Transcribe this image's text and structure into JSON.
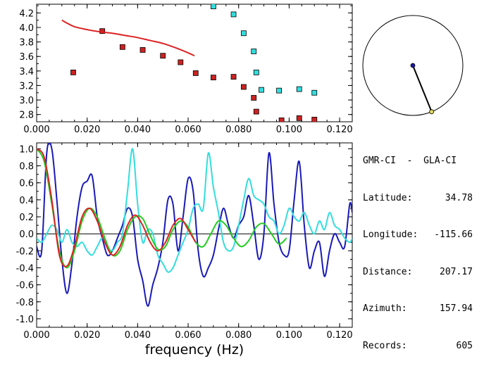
{
  "station_info": {
    "pair": "GMR-CI  -  GLA-CI",
    "rows": [
      {
        "label": "Latitude:",
        "value": "34.78"
      },
      {
        "label": "Longitude:",
        "value": "-115.66"
      },
      {
        "label": "Distance:",
        "value": "207.17"
      },
      {
        "label": "Azimuth:",
        "value": "157.94"
      },
      {
        "label": "Records:",
        "value": "605"
      }
    ]
  },
  "azimuth_plot": {
    "azimuth_deg": 157.94,
    "colors": {
      "line": "#000000",
      "center": "#1a1aa6",
      "end": "#e8e060"
    }
  },
  "chart_data": [
    {
      "type": "scatter",
      "title": "",
      "xlabel": "",
      "ylabel": "",
      "xlim": [
        0.0,
        0.125
      ],
      "ylim": [
        2.7,
        4.32
      ],
      "x_ticks": [
        "0.000",
        "0.020",
        "0.040",
        "0.060",
        "0.080",
        "0.100",
        "0.120"
      ],
      "y_ticks": [
        "2.8",
        "3.0",
        "3.2",
        "3.4",
        "3.6",
        "3.8",
        "4.0",
        "4.2"
      ],
      "series": [
        {
          "name": "red-squares",
          "color": "#cc2222",
          "marker": "square",
          "x": [
            0.0145,
            0.026,
            0.034,
            0.042,
            0.05,
            0.057,
            0.063,
            0.07,
            0.078,
            0.082,
            0.086,
            0.087,
            0.097,
            0.104,
            0.11
          ],
          "y": [
            3.38,
            3.95,
            3.73,
            3.69,
            3.61,
            3.52,
            3.37,
            3.31,
            3.32,
            3.18,
            3.03,
            2.84,
            2.72,
            2.75,
            2.73
          ]
        },
        {
          "name": "cyan-squares",
          "color": "#33dddd",
          "marker": "square",
          "x": [
            0.07,
            0.078,
            0.082,
            0.086,
            0.087,
            0.089,
            0.096,
            0.104,
            0.11
          ],
          "y": [
            4.29,
            4.18,
            3.92,
            3.67,
            3.38,
            3.14,
            3.13,
            3.15,
            3.1
          ]
        },
        {
          "name": "red-curve",
          "color": "#dd2222",
          "marker": "line",
          "x": [
            0.01,
            0.012,
            0.015,
            0.02,
            0.025,
            0.03,
            0.035,
            0.04,
            0.045,
            0.05,
            0.055,
            0.06,
            0.0625
          ],
          "y": [
            4.1,
            4.06,
            4.01,
            3.97,
            3.94,
            3.92,
            3.89,
            3.86,
            3.82,
            3.78,
            3.72,
            3.65,
            3.61
          ]
        }
      ]
    },
    {
      "type": "line",
      "title": "",
      "xlabel": "frequency (Hz)",
      "ylabel": "",
      "xlim": [
        0.0,
        0.125
      ],
      "ylim": [
        -1.1,
        1.07
      ],
      "x_ticks": [
        "0.000",
        "0.020",
        "0.040",
        "0.060",
        "0.080",
        "0.100",
        "0.120"
      ],
      "y_ticks": [
        "1.0",
        "0.8",
        "0.6",
        "0.4",
        "0.2",
        "0.0",
        "-0.2",
        "-0.4",
        "-0.6",
        "-0.8",
        "-1.0"
      ],
      "zero_line": true,
      "series": [
        {
          "name": "blue-trace",
          "color": "#1a1ab8",
          "x": [
            0.0,
            0.002,
            0.004,
            0.006,
            0.008,
            0.01,
            0.012,
            0.014,
            0.016,
            0.018,
            0.02,
            0.022,
            0.024,
            0.026,
            0.028,
            0.03,
            0.032,
            0.034,
            0.036,
            0.038,
            0.04,
            0.042,
            0.044,
            0.046,
            0.048,
            0.05,
            0.052,
            0.054,
            0.056,
            0.058,
            0.06,
            0.062,
            0.064,
            0.066,
            0.068,
            0.07,
            0.072,
            0.074,
            0.076,
            0.078,
            0.08,
            0.082,
            0.084,
            0.086,
            0.088,
            0.09,
            0.092,
            0.094,
            0.096,
            0.098,
            0.1,
            0.102,
            0.104,
            0.106,
            0.108,
            0.11,
            0.112,
            0.114,
            0.116,
            0.118,
            0.12,
            0.122,
            0.124,
            0.125
          ],
          "y": [
            -0.15,
            -0.2,
            0.95,
            1.0,
            0.4,
            -0.3,
            -0.7,
            -0.35,
            0.2,
            0.55,
            0.62,
            0.68,
            0.2,
            -0.05,
            -0.25,
            -0.2,
            -0.05,
            0.1,
            0.3,
            0.2,
            -0.3,
            -0.55,
            -0.85,
            -0.6,
            -0.4,
            -0.1,
            0.4,
            0.35,
            -0.2,
            0.2,
            0.65,
            0.5,
            -0.2,
            -0.5,
            -0.4,
            -0.25,
            0.05,
            0.3,
            0.1,
            -0.05,
            0.1,
            0.2,
            0.45,
            0.1,
            -0.3,
            0.0,
            0.95,
            0.35,
            -0.1,
            -0.25,
            -0.2,
            0.4,
            0.85,
            0.1,
            -0.4,
            -0.2,
            -0.1,
            -0.5,
            -0.2,
            0.0,
            -0.1,
            -0.15,
            0.35,
            0.25
          ]
        },
        {
          "name": "cyan-trace",
          "color": "#33dddd",
          "x": [
            0.0,
            0.002,
            0.004,
            0.006,
            0.008,
            0.01,
            0.012,
            0.014,
            0.016,
            0.018,
            0.02,
            0.022,
            0.024,
            0.026,
            0.028,
            0.03,
            0.032,
            0.034,
            0.036,
            0.038,
            0.04,
            0.042,
            0.044,
            0.046,
            0.048,
            0.05,
            0.052,
            0.054,
            0.056,
            0.058,
            0.06,
            0.062,
            0.064,
            0.066,
            0.068,
            0.07,
            0.072,
            0.074,
            0.076,
            0.078,
            0.08,
            0.082,
            0.084,
            0.086,
            0.088,
            0.09,
            0.092,
            0.094,
            0.096,
            0.098,
            0.1,
            0.102,
            0.104,
            0.106,
            0.108,
            0.11,
            0.112,
            0.114,
            0.116,
            0.118,
            0.12,
            0.122,
            0.124,
            0.125
          ],
          "y": [
            -0.05,
            -0.1,
            0.0,
            0.1,
            0.05,
            -0.1,
            0.05,
            -0.1,
            -0.15,
            -0.1,
            -0.2,
            -0.25,
            -0.15,
            -0.05,
            -0.15,
            -0.2,
            -0.1,
            0.0,
            0.5,
            1.0,
            0.35,
            -0.1,
            0.05,
            0.0,
            -0.25,
            -0.35,
            -0.45,
            -0.4,
            -0.25,
            -0.1,
            0.05,
            0.3,
            0.35,
            0.3,
            0.95,
            0.55,
            0.25,
            -0.1,
            -0.2,
            -0.15,
            0.1,
            0.4,
            0.65,
            0.45,
            0.4,
            0.35,
            0.2,
            0.15,
            0.0,
            0.1,
            0.3,
            0.2,
            0.15,
            0.25,
            0.1,
            0.0,
            0.15,
            0.05,
            0.25,
            0.1,
            0.05,
            -0.05,
            -0.1,
            -0.05
          ]
        },
        {
          "name": "green-model",
          "color": "#22cc22",
          "x": [
            0.0,
            0.003,
            0.006,
            0.009,
            0.012,
            0.015,
            0.018,
            0.021,
            0.024,
            0.027,
            0.03,
            0.033,
            0.036,
            0.039,
            0.042,
            0.045,
            0.048,
            0.051,
            0.054,
            0.057,
            0.06,
            0.063,
            0.066,
            0.069,
            0.072,
            0.075,
            0.078,
            0.081,
            0.084,
            0.087,
            0.09,
            0.093,
            0.096,
            0.099
          ],
          "y": [
            1.0,
            0.85,
            0.35,
            -0.2,
            -0.4,
            -0.2,
            0.15,
            0.3,
            0.2,
            -0.05,
            -0.25,
            -0.2,
            0.05,
            0.2,
            0.18,
            -0.02,
            -0.18,
            -0.15,
            0.05,
            0.15,
            0.08,
            -0.1,
            -0.15,
            0.0,
            0.15,
            0.1,
            -0.05,
            -0.15,
            -0.08,
            0.08,
            0.12,
            0.0,
            -0.12,
            -0.05
          ]
        },
        {
          "name": "red-model",
          "color": "#dd2222",
          "x": [
            0.0,
            0.003,
            0.006,
            0.009,
            0.012,
            0.015,
            0.018,
            0.021,
            0.024,
            0.027,
            0.03,
            0.033,
            0.036,
            0.039,
            0.042,
            0.045,
            0.048,
            0.051,
            0.054,
            0.057,
            0.06,
            0.063
          ],
          "y": [
            1.0,
            0.9,
            0.4,
            -0.25,
            -0.38,
            -0.15,
            0.2,
            0.3,
            0.15,
            -0.1,
            -0.25,
            -0.15,
            0.1,
            0.22,
            0.1,
            -0.1,
            -0.2,
            -0.1,
            0.1,
            0.18,
            0.05,
            -0.1
          ]
        }
      ]
    }
  ]
}
